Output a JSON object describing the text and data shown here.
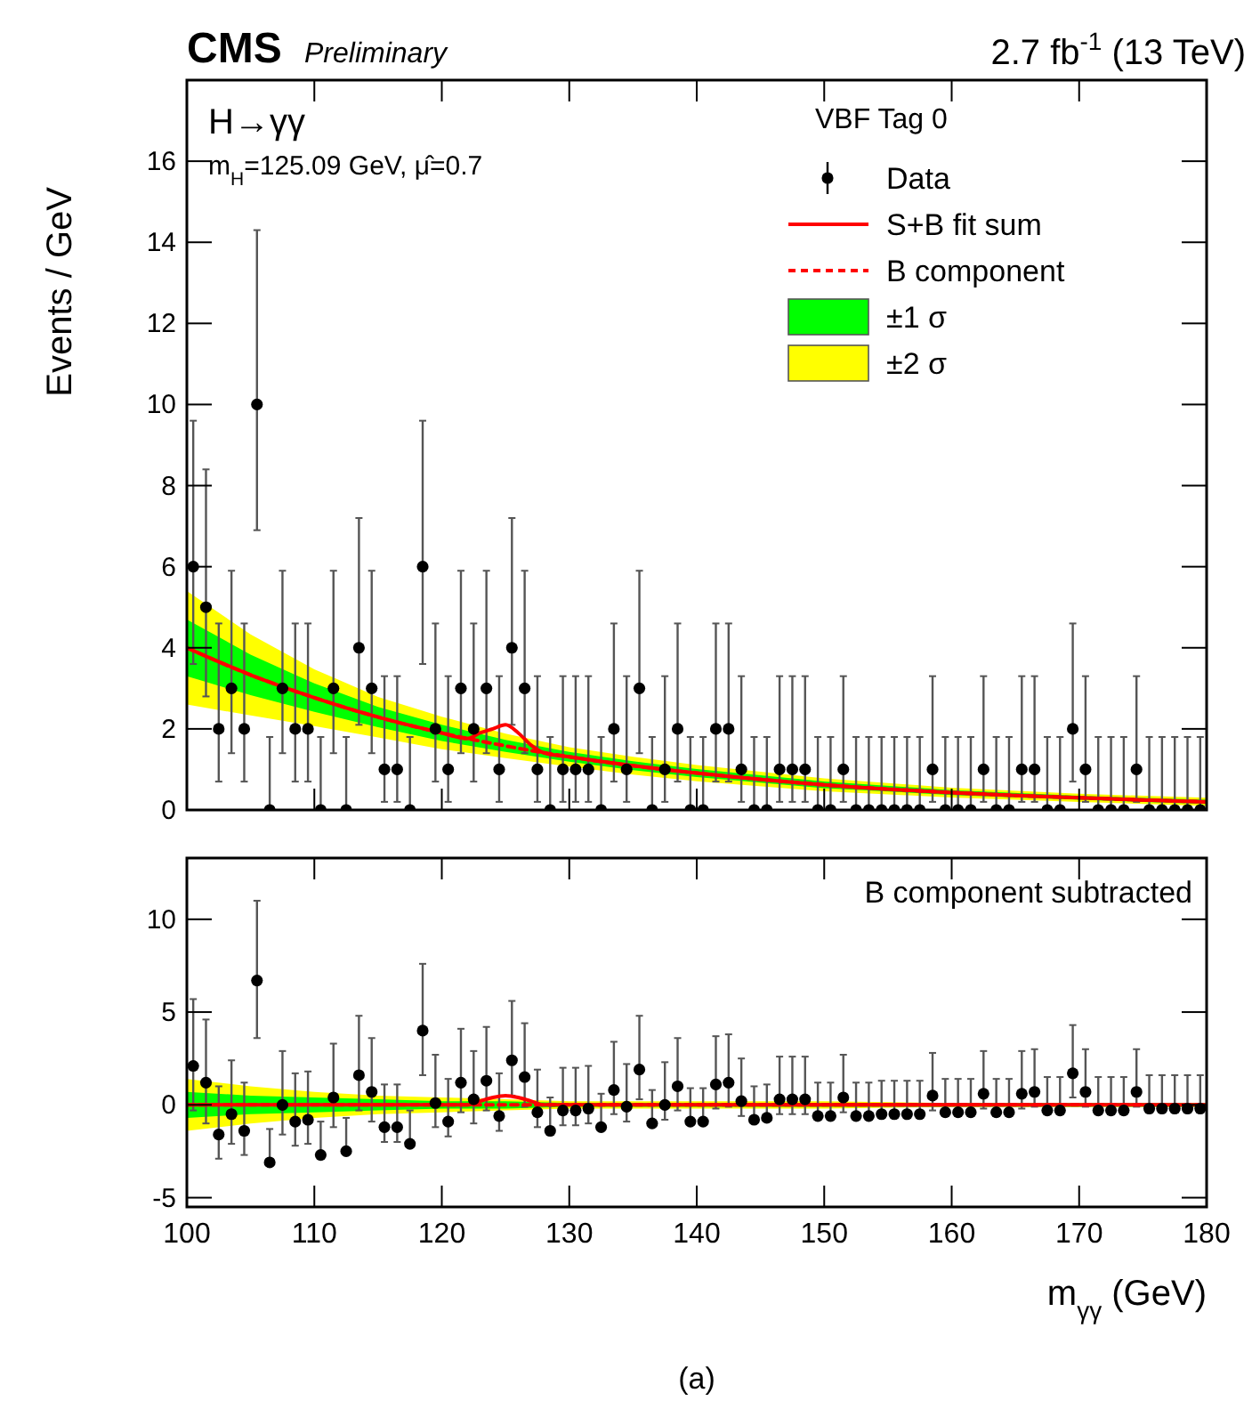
{
  "chart_data": [
    {
      "type": "scatter",
      "title": "CMS",
      "subtitle": "Preliminary",
      "ylabel": "Events / GeV",
      "legend_title": "VBF Tag 0",
      "legend": "top right",
      "tick_labels": "y",
      "annotations": [
        "2.7 fb$^{-1}$ (13 TeV)",
        "H→γγ",
        "m$_{H}$=125.09 GeV, μ̂=0.7"
      ],
      "xlim": [
        100,
        180
      ],
      "xticks": [
        100,
        110,
        120,
        130,
        140,
        150,
        160,
        170,
        180
      ],
      "ylim": [
        0,
        18
      ],
      "yticks": [
        0,
        2,
        4,
        6,
        8,
        10,
        12,
        14,
        16
      ],
      "series": [
        {
          "name": "±2 σ",
          "type": "line",
          "color": "#ffff00",
          "x": [
            100,
            105,
            110,
            115,
            120,
            125,
            130,
            135,
            140,
            150,
            160,
            170,
            180
          ],
          "values": [
            null,
            null,
            null,
            null,
            null,
            null,
            null,
            null,
            null,
            null,
            null,
            null,
            null
          ],
          "lower": [
            2.6,
            2.33,
            2.07,
            1.79,
            1.5,
            1.28,
            1.07,
            0.87,
            0.71,
            0.46,
            0.31,
            0.2,
            0.1
          ],
          "upper": [
            5.4,
            4.33,
            3.47,
            2.79,
            2.3,
            1.88,
            1.55,
            1.31,
            1.11,
            0.78,
            0.55,
            0.4,
            0.3
          ]
        },
        {
          "name": "±1 σ",
          "type": "line",
          "color": "#00ff00",
          "x": [
            100,
            105,
            110,
            115,
            120,
            125,
            130,
            135,
            140,
            150,
            160,
            170,
            180
          ],
          "values": [
            null,
            null,
            null,
            null,
            null,
            null,
            null,
            null,
            null,
            null,
            null,
            null,
            null
          ],
          "lower": [
            3.3,
            2.83,
            2.42,
            2.04,
            1.7,
            1.43,
            1.19,
            0.98,
            0.81,
            0.54,
            0.37,
            0.25,
            0.15
          ],
          "upper": [
            4.7,
            3.83,
            3.12,
            2.54,
            2.1,
            1.73,
            1.43,
            1.2,
            1.01,
            0.7,
            0.49,
            0.35,
            0.25
          ]
        },
        {
          "name": "B component",
          "type": "line",
          "line_style": "dashed",
          "color": "#ff0000",
          "x": [
            100,
            105,
            110,
            115,
            120,
            125,
            130,
            135,
            140,
            150,
            160,
            170,
            180
          ],
          "values": [
            4.0,
            3.33,
            2.77,
            2.29,
            1.9,
            1.58,
            1.31,
            1.09,
            0.91,
            0.62,
            0.43,
            0.3,
            0.2
          ]
        },
        {
          "name": "S+B fit sum",
          "type": "line",
          "line_style": "solid",
          "color": "#ff0000",
          "x": [
            100,
            105,
            110,
            115,
            120,
            122,
            123,
            124,
            125,
            126,
            127,
            128,
            130,
            135,
            140,
            150,
            160,
            170,
            180
          ],
          "values": [
            4.0,
            3.33,
            2.77,
            2.29,
            1.9,
            1.76,
            1.9,
            2.0,
            2.1,
            1.9,
            1.6,
            1.41,
            1.31,
            1.09,
            0.91,
            0.62,
            0.43,
            0.3,
            0.2
          ]
        },
        {
          "name": "Data",
          "type": "scatter",
          "marker": "circle",
          "color": "#000000",
          "x": [
            100.5,
            101.5,
            102.5,
            103.5,
            104.5,
            105.5,
            106.5,
            107.5,
            108.5,
            109.5,
            110.5,
            111.5,
            112.5,
            113.5,
            114.5,
            115.5,
            116.5,
            117.5,
            118.5,
            119.5,
            120.5,
            121.5,
            122.5,
            123.5,
            124.5,
            125.5,
            126.5,
            127.5,
            128.5,
            129.5,
            130.5,
            131.5,
            132.5,
            133.5,
            134.5,
            135.5,
            136.5,
            137.5,
            138.5,
            139.5,
            140.5,
            141.5,
            142.5,
            143.5,
            144.5,
            145.5,
            146.5,
            147.5,
            148.5,
            149.5,
            150.5,
            151.5,
            152.5,
            153.5,
            154.5,
            155.5,
            156.5,
            157.5,
            158.5,
            159.5,
            160.5,
            161.5,
            162.5,
            163.5,
            164.5,
            165.5,
            166.5,
            167.5,
            168.5,
            169.5,
            170.5,
            171.5,
            172.5,
            173.5,
            174.5,
            175.5,
            176.5,
            177.5,
            178.5,
            179.5
          ],
          "values": [
            6,
            5,
            2,
            3,
            2,
            10,
            0,
            3,
            2,
            2,
            0,
            3,
            0,
            4,
            3,
            1,
            1,
            0,
            6,
            2,
            1,
            3,
            2,
            3,
            1,
            4,
            3,
            1,
            0,
            1,
            1,
            1,
            0,
            2,
            1,
            3,
            0,
            1,
            2,
            0,
            0,
            2,
            2,
            1,
            0,
            0,
            1,
            1,
            1,
            0,
            0,
            1,
            0,
            0,
            0,
            0,
            0,
            0,
            1,
            0,
            0,
            0,
            1,
            0,
            0,
            1,
            1,
            0,
            0,
            2,
            1,
            0,
            0,
            0,
            1,
            0,
            0,
            0,
            0,
            0
          ],
          "errors": [
            [
              3.6,
              9.6
            ],
            [
              2.8,
              8.4
            ],
            [
              0.7,
              4.6
            ],
            [
              1.4,
              5.9
            ],
            [
              0.7,
              4.6
            ],
            [
              6.9,
              14.3
            ],
            [
              0,
              1.8
            ],
            [
              1.4,
              5.9
            ],
            [
              0.7,
              4.6
            ],
            [
              0.7,
              4.6
            ],
            [
              0,
              1.8
            ],
            [
              1.4,
              5.9
            ],
            [
              0,
              1.8
            ],
            [
              2.1,
              7.2
            ],
            [
              1.4,
              5.9
            ],
            [
              0.2,
              3.3
            ],
            [
              0.2,
              3.3
            ],
            [
              0,
              1.8
            ],
            [
              3.6,
              9.6
            ],
            [
              0.7,
              4.6
            ],
            [
              0.2,
              3.3
            ],
            [
              1.4,
              5.9
            ],
            [
              0.7,
              4.6
            ],
            [
              1.4,
              5.9
            ],
            [
              0.2,
              3.3
            ],
            [
              2.1,
              7.2
            ],
            [
              1.4,
              5.9
            ],
            [
              0.2,
              3.3
            ],
            [
              0,
              1.8
            ],
            [
              0.2,
              3.3
            ],
            [
              0.2,
              3.3
            ],
            [
              0.2,
              3.3
            ],
            [
              0,
              1.8
            ],
            [
              0.7,
              4.6
            ],
            [
              0.2,
              3.3
            ],
            [
              1.4,
              5.9
            ],
            [
              0,
              1.8
            ],
            [
              0.2,
              3.3
            ],
            [
              0.7,
              4.6
            ],
            [
              0,
              1.8
            ],
            [
              0,
              1.8
            ],
            [
              0.7,
              4.6
            ],
            [
              0.7,
              4.6
            ],
            [
              0.2,
              3.3
            ],
            [
              0,
              1.8
            ],
            [
              0,
              1.8
            ],
            [
              0.2,
              3.3
            ],
            [
              0.2,
              3.3
            ],
            [
              0.2,
              3.3
            ],
            [
              0,
              1.8
            ],
            [
              0,
              1.8
            ],
            [
              0.2,
              3.3
            ],
            [
              0,
              1.8
            ],
            [
              0,
              1.8
            ],
            [
              0,
              1.8
            ],
            [
              0,
              1.8
            ],
            [
              0,
              1.8
            ],
            [
              0,
              1.8
            ],
            [
              0.2,
              3.3
            ],
            [
              0,
              1.8
            ],
            [
              0,
              1.8
            ],
            [
              0,
              1.8
            ],
            [
              0.2,
              3.3
            ],
            [
              0,
              1.8
            ],
            [
              0,
              1.8
            ],
            [
              0.2,
              3.3
            ],
            [
              0.2,
              3.3
            ],
            [
              0,
              1.8
            ],
            [
              0,
              1.8
            ],
            [
              0.7,
              4.6
            ],
            [
              0.2,
              3.3
            ],
            [
              0,
              1.8
            ],
            [
              0,
              1.8
            ],
            [
              0,
              1.8
            ],
            [
              0.2,
              3.3
            ],
            [
              0,
              1.8
            ],
            [
              0,
              1.8
            ],
            [
              0,
              1.8
            ],
            [
              0,
              1.8
            ],
            [
              0,
              1.8
            ]
          ]
        }
      ]
    },
    {
      "type": "scatter",
      "xlabel": "m$_{γγ}$ (GeV)",
      "annotations": [
        "B component subtracted",
        "(a)"
      ],
      "xlim": [
        100,
        180
      ],
      "xticks": [
        100,
        110,
        120,
        130,
        140,
        150,
        160,
        170,
        180
      ],
      "ylim": [
        -5.5,
        13.3
      ],
      "yticks": [
        -5,
        0,
        5,
        10
      ],
      "series": [
        {
          "type": "line",
          "color": "#ffff00",
          "x": [
            100,
            105,
            110,
            115,
            120,
            125,
            130,
            135,
            140,
            150,
            160,
            170,
            180
          ],
          "values": [
            null,
            null,
            null,
            null,
            null,
            null,
            null,
            null,
            null,
            null,
            null,
            null,
            null
          ],
          "lower": [
            -1.4,
            -1.0,
            -0.7,
            -0.5,
            -0.4,
            -0.3,
            -0.2,
            -0.2,
            -0.2,
            -0.2,
            -0.1,
            -0.1,
            -0.1
          ],
          "upper": [
            1.4,
            1.0,
            0.7,
            0.5,
            0.4,
            0.3,
            0.2,
            0.2,
            0.2,
            0.2,
            0.1,
            0.1,
            0.1
          ]
        },
        {
          "type": "line",
          "color": "#00ff00",
          "x": [
            100,
            105,
            110,
            115,
            120,
            125,
            130,
            135,
            140,
            150,
            160,
            170,
            180
          ],
          "values": [
            null,
            null,
            null,
            null,
            null,
            null,
            null,
            null,
            null,
            null,
            null,
            null,
            null
          ],
          "lower": [
            -0.7,
            -0.5,
            -0.4,
            -0.3,
            -0.2,
            -0.2,
            -0.1,
            -0.1,
            -0.1,
            -0.1,
            -0.1,
            -0.1,
            -0.1
          ],
          "upper": [
            0.7,
            0.5,
            0.4,
            0.3,
            0.2,
            0.2,
            0.1,
            0.1,
            0.1,
            0.1,
            0.1,
            0.1,
            0.1
          ]
        },
        {
          "type": "line",
          "line_style": "dashed",
          "color": "#ff0000",
          "x": [
            100,
            180
          ],
          "values": [
            0,
            0
          ]
        },
        {
          "type": "line",
          "line_style": "solid",
          "color": "#ff0000",
          "x": [
            100,
            122,
            123,
            124,
            125,
            126,
            127,
            128,
            180
          ],
          "values": [
            0,
            0,
            0.2,
            0.4,
            0.5,
            0.4,
            0.2,
            0,
            0
          ]
        },
        {
          "type": "scatter",
          "marker": "circle",
          "color": "#000000",
          "x": [
            100.5,
            101.5,
            102.5,
            103.5,
            104.5,
            105.5,
            106.5,
            107.5,
            108.5,
            109.5,
            110.5,
            111.5,
            112.5,
            113.5,
            114.5,
            115.5,
            116.5,
            117.5,
            118.5,
            119.5,
            120.5,
            121.5,
            122.5,
            123.5,
            124.5,
            125.5,
            126.5,
            127.5,
            128.5,
            129.5,
            130.5,
            131.5,
            132.5,
            133.5,
            134.5,
            135.5,
            136.5,
            137.5,
            138.5,
            139.5,
            140.5,
            141.5,
            142.5,
            143.5,
            144.5,
            145.5,
            146.5,
            147.5,
            148.5,
            149.5,
            150.5,
            151.5,
            152.5,
            153.5,
            154.5,
            155.5,
            156.5,
            157.5,
            158.5,
            159.5,
            160.5,
            161.5,
            162.5,
            163.5,
            164.5,
            165.5,
            166.5,
            167.5,
            168.5,
            169.5,
            170.5,
            171.5,
            172.5,
            173.5,
            174.5,
            175.5,
            176.5,
            177.5,
            178.5,
            179.5
          ],
          "values": [
            2.1,
            1.2,
            -1.6,
            -0.5,
            -1.4,
            6.7,
            -3.1,
            0.0,
            -0.9,
            -0.8,
            -2.7,
            0.4,
            -2.5,
            1.6,
            0.7,
            -1.2,
            -1.2,
            -2.1,
            4.0,
            0.1,
            -0.9,
            1.2,
            0.3,
            1.3,
            -0.6,
            2.4,
            1.5,
            -0.4,
            -1.4,
            -0.3,
            -0.3,
            -0.2,
            -1.2,
            0.8,
            -0.1,
            1.9,
            -1.0,
            0.0,
            1.0,
            -0.9,
            -0.9,
            1.1,
            1.2,
            0.2,
            -0.8,
            -0.7,
            0.3,
            0.3,
            0.3,
            -0.6,
            -0.6,
            0.4,
            -0.6,
            -0.6,
            -0.5,
            -0.5,
            -0.5,
            -0.5,
            0.5,
            -0.4,
            -0.4,
            -0.4,
            0.6,
            -0.4,
            -0.4,
            0.6,
            0.7,
            -0.3,
            -0.3,
            1.7,
            0.7,
            -0.3,
            -0.3,
            -0.3,
            0.7,
            -0.2,
            -0.2,
            -0.2,
            -0.2,
            -0.2
          ],
          "errors": [
            [
              -0.3,
              5.7
            ],
            [
              -1.0,
              4.6
            ],
            [
              -2.9,
              1.0
            ],
            [
              -2.1,
              2.4
            ],
            [
              -2.7,
              1.2
            ],
            [
              3.6,
              11.0
            ],
            [
              -3.1,
              -1.3
            ],
            [
              -1.6,
              2.9
            ],
            [
              -2.2,
              1.7
            ],
            [
              -2.1,
              1.8
            ],
            [
              -2.7,
              -0.9
            ],
            [
              -1.2,
              3.3
            ],
            [
              -2.5,
              -0.7
            ],
            [
              -0.3,
              4.8
            ],
            [
              -0.9,
              3.6
            ],
            [
              -2.0,
              1.1
            ],
            [
              -2.0,
              1.1
            ],
            [
              -2.1,
              -0.3
            ],
            [
              1.6,
              7.6
            ],
            [
              -1.2,
              2.7
            ],
            [
              -1.7,
              1.4
            ],
            [
              -0.4,
              4.1
            ],
            [
              -1.0,
              2.9
            ],
            [
              -0.3,
              4.2
            ],
            [
              -1.4,
              1.7
            ],
            [
              0.5,
              5.6
            ],
            [
              -0.1,
              4.4
            ],
            [
              -1.2,
              1.9
            ],
            [
              -1.4,
              0.4
            ],
            [
              -1.1,
              2.0
            ],
            [
              -1.1,
              2.0
            ],
            [
              -1.0,
              2.1
            ],
            [
              -1.2,
              0.6
            ],
            [
              -0.5,
              3.4
            ],
            [
              -0.9,
              2.2
            ],
            [
              0.3,
              4.8
            ],
            [
              -1.0,
              0.8
            ],
            [
              -0.8,
              2.3
            ],
            [
              -0.3,
              3.6
            ],
            [
              -0.9,
              0.9
            ],
            [
              -0.9,
              0.9
            ],
            [
              -0.2,
              3.7
            ],
            [
              -0.1,
              3.8
            ],
            [
              -0.6,
              2.5
            ],
            [
              -0.8,
              1.0
            ],
            [
              -0.7,
              1.1
            ],
            [
              -0.5,
              2.6
            ],
            [
              -0.5,
              2.6
            ],
            [
              -0.5,
              2.6
            ],
            [
              -0.6,
              1.2
            ],
            [
              -0.6,
              1.2
            ],
            [
              -0.4,
              2.7
            ],
            [
              -0.6,
              1.2
            ],
            [
              -0.6,
              1.2
            ],
            [
              -0.5,
              1.3
            ],
            [
              -0.5,
              1.3
            ],
            [
              -0.5,
              1.3
            ],
            [
              -0.5,
              1.3
            ],
            [
              -0.3,
              2.8
            ],
            [
              -0.4,
              1.4
            ],
            [
              -0.4,
              1.4
            ],
            [
              -0.4,
              1.4
            ],
            [
              -0.2,
              2.9
            ],
            [
              -0.4,
              1.4
            ],
            [
              -0.4,
              1.4
            ],
            [
              -0.2,
              2.9
            ],
            [
              -0.1,
              3.0
            ],
            [
              -0.3,
              1.5
            ],
            [
              -0.3,
              1.5
            ],
            [
              0.4,
              4.3
            ],
            [
              -0.1,
              3.0
            ],
            [
              -0.3,
              1.5
            ],
            [
              -0.3,
              1.5
            ],
            [
              -0.3,
              1.5
            ],
            [
              -0.1,
              3.0
            ],
            [
              -0.2,
              1.6
            ],
            [
              -0.2,
              1.6
            ],
            [
              -0.2,
              1.6
            ],
            [
              -0.2,
              1.6
            ],
            [
              -0.2,
              1.6
            ]
          ]
        }
      ]
    }
  ]
}
